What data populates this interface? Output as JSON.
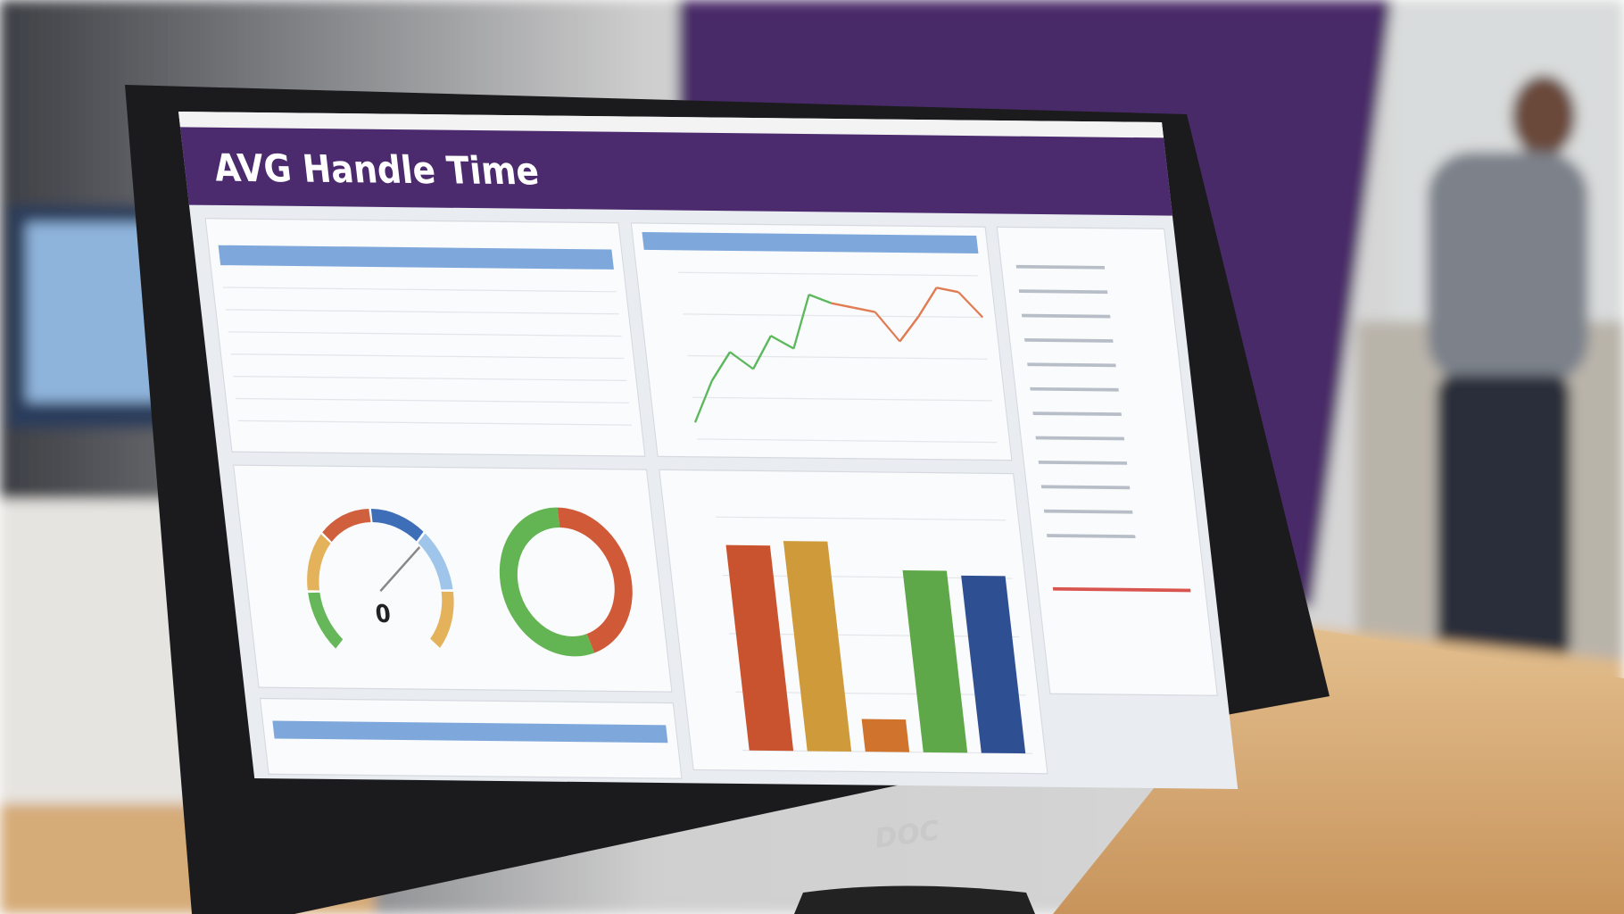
{
  "title": "AVG Handle Time",
  "brand": "DOC",
  "gauge": {
    "value": 0
  },
  "line_chart": {
    "type": "line",
    "values": [
      0.4,
      1.4,
      2.1,
      1.7,
      2.5,
      2.2,
      3.5,
      3.3,
      3.2,
      3.1,
      2.4,
      3.0,
      3.7,
      3.6,
      3.0
    ],
    "colors": [
      "#5cb85c",
      "#e07b54"
    ],
    "ylim": [
      0,
      4
    ]
  },
  "bar_chart": {
    "type": "bar",
    "values": [
      88,
      90,
      14,
      78,
      76
    ],
    "colors": [
      "#c9532f",
      "#cf9a3a",
      "#d0732c",
      "#5fa84a",
      "#2f4f93"
    ],
    "ylim": [
      0,
      100
    ]
  },
  "donut": {
    "type": "pie",
    "values": [
      55,
      45
    ],
    "colors": [
      "#62b552",
      "#d05a38"
    ]
  }
}
